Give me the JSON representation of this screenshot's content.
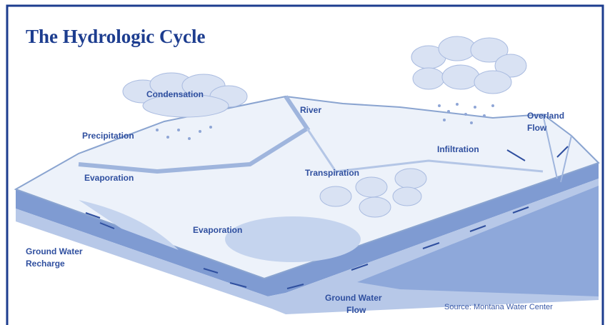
{
  "header": {
    "title": "The Hydrologic Cycle"
  },
  "labels": [
    {
      "lines": [
        "Condensation"
      ]
    },
    {
      "lines": [
        "River"
      ]
    },
    {
      "lines": [
        "Overland",
        "Flow"
      ]
    },
    {
      "lines": [
        "Precipitation"
      ]
    },
    {
      "lines": [
        "Infiltration"
      ]
    },
    {
      "lines": [
        "Evaporation"
      ]
    },
    {
      "lines": [
        "Transpiration"
      ]
    },
    {
      "lines": [
        "Evaporation"
      ]
    },
    {
      "lines": [
        "Ground Water",
        "Recharge"
      ]
    },
    {
      "lines": [
        "Ground Water",
        "Flow"
      ]
    }
  ],
  "source": "Source: Montana Water Center"
}
